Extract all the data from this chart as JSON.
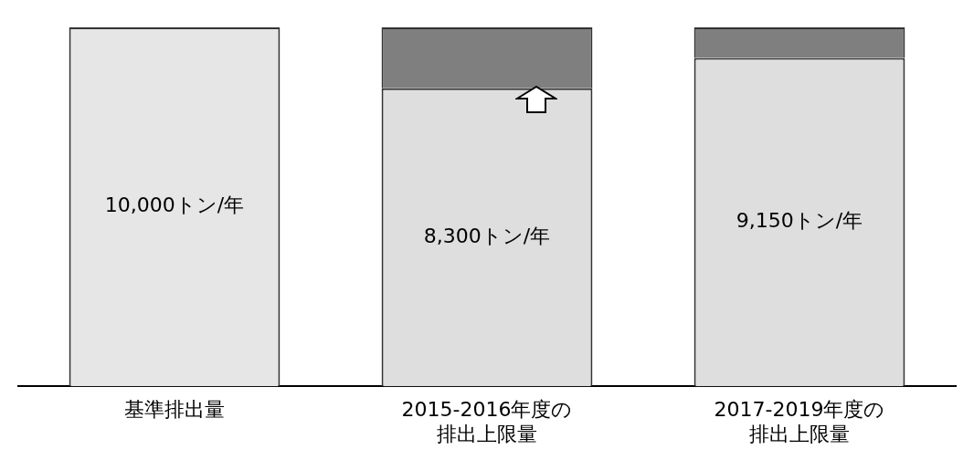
{
  "chart_data": {
    "type": "bar",
    "stacked": true,
    "categories": [
      "基準排出量",
      "2015-2016年度の排出上限量",
      "2017-2019年度の排出上限量"
    ],
    "series": [
      {
        "colors": [
          "#e6e6e6",
          "#dedede",
          "#dedede"
        ],
        "values": [
          10000,
          8300,
          9150
        ],
        "value_labels": [
          "10,000トン/年",
          "8,300トン/年",
          "9,150トン/年"
        ]
      },
      {
        "color": "#7f7f7f",
        "values": [
          null,
          1700,
          850
        ]
      }
    ],
    "tick_labels": "x",
    "grid": false,
    "legend": false
  }
}
